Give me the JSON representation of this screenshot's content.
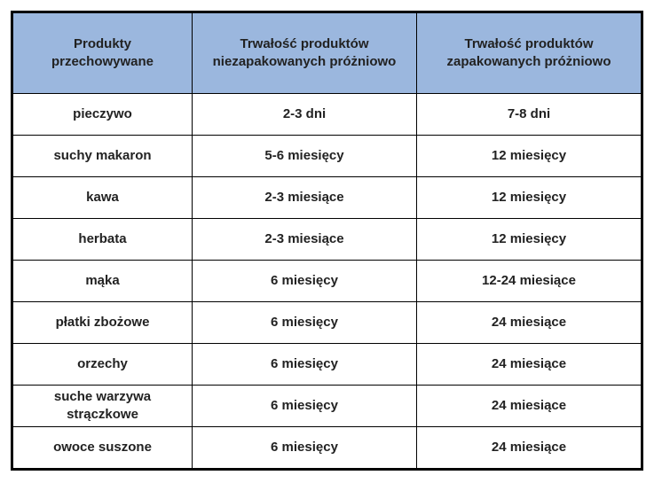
{
  "table": {
    "header": [
      [
        "Produkty",
        "przechowywane"
      ],
      [
        "Trwałość produktów",
        "niezapakowanych próżniowo"
      ],
      [
        "Trwałość produktów",
        "zapakowanych próżniowo"
      ]
    ],
    "rows": [
      [
        "pieczywo",
        "2-3 dni",
        "7-8 dni"
      ],
      [
        "suchy makaron",
        "5-6 miesięcy",
        "12 miesięcy"
      ],
      [
        "kawa",
        "2-3 miesiące",
        "12 miesięcy"
      ],
      [
        "herbata",
        "2-3 miesiące",
        "12 miesięcy"
      ],
      [
        "mąka",
        "6 miesięcy",
        "12-24 miesiące"
      ],
      [
        "płatki zbożowe",
        "6 miesięcy",
        "24 miesiące"
      ],
      [
        "orzechy",
        "6 miesięcy",
        "24 miesiące"
      ],
      [
        [
          "suche warzywa",
          "strączkowe"
        ],
        "6 miesięcy",
        "24 miesiące"
      ],
      [
        "owoce suszone",
        "6 miesięcy",
        "24 miesiące"
      ]
    ]
  }
}
